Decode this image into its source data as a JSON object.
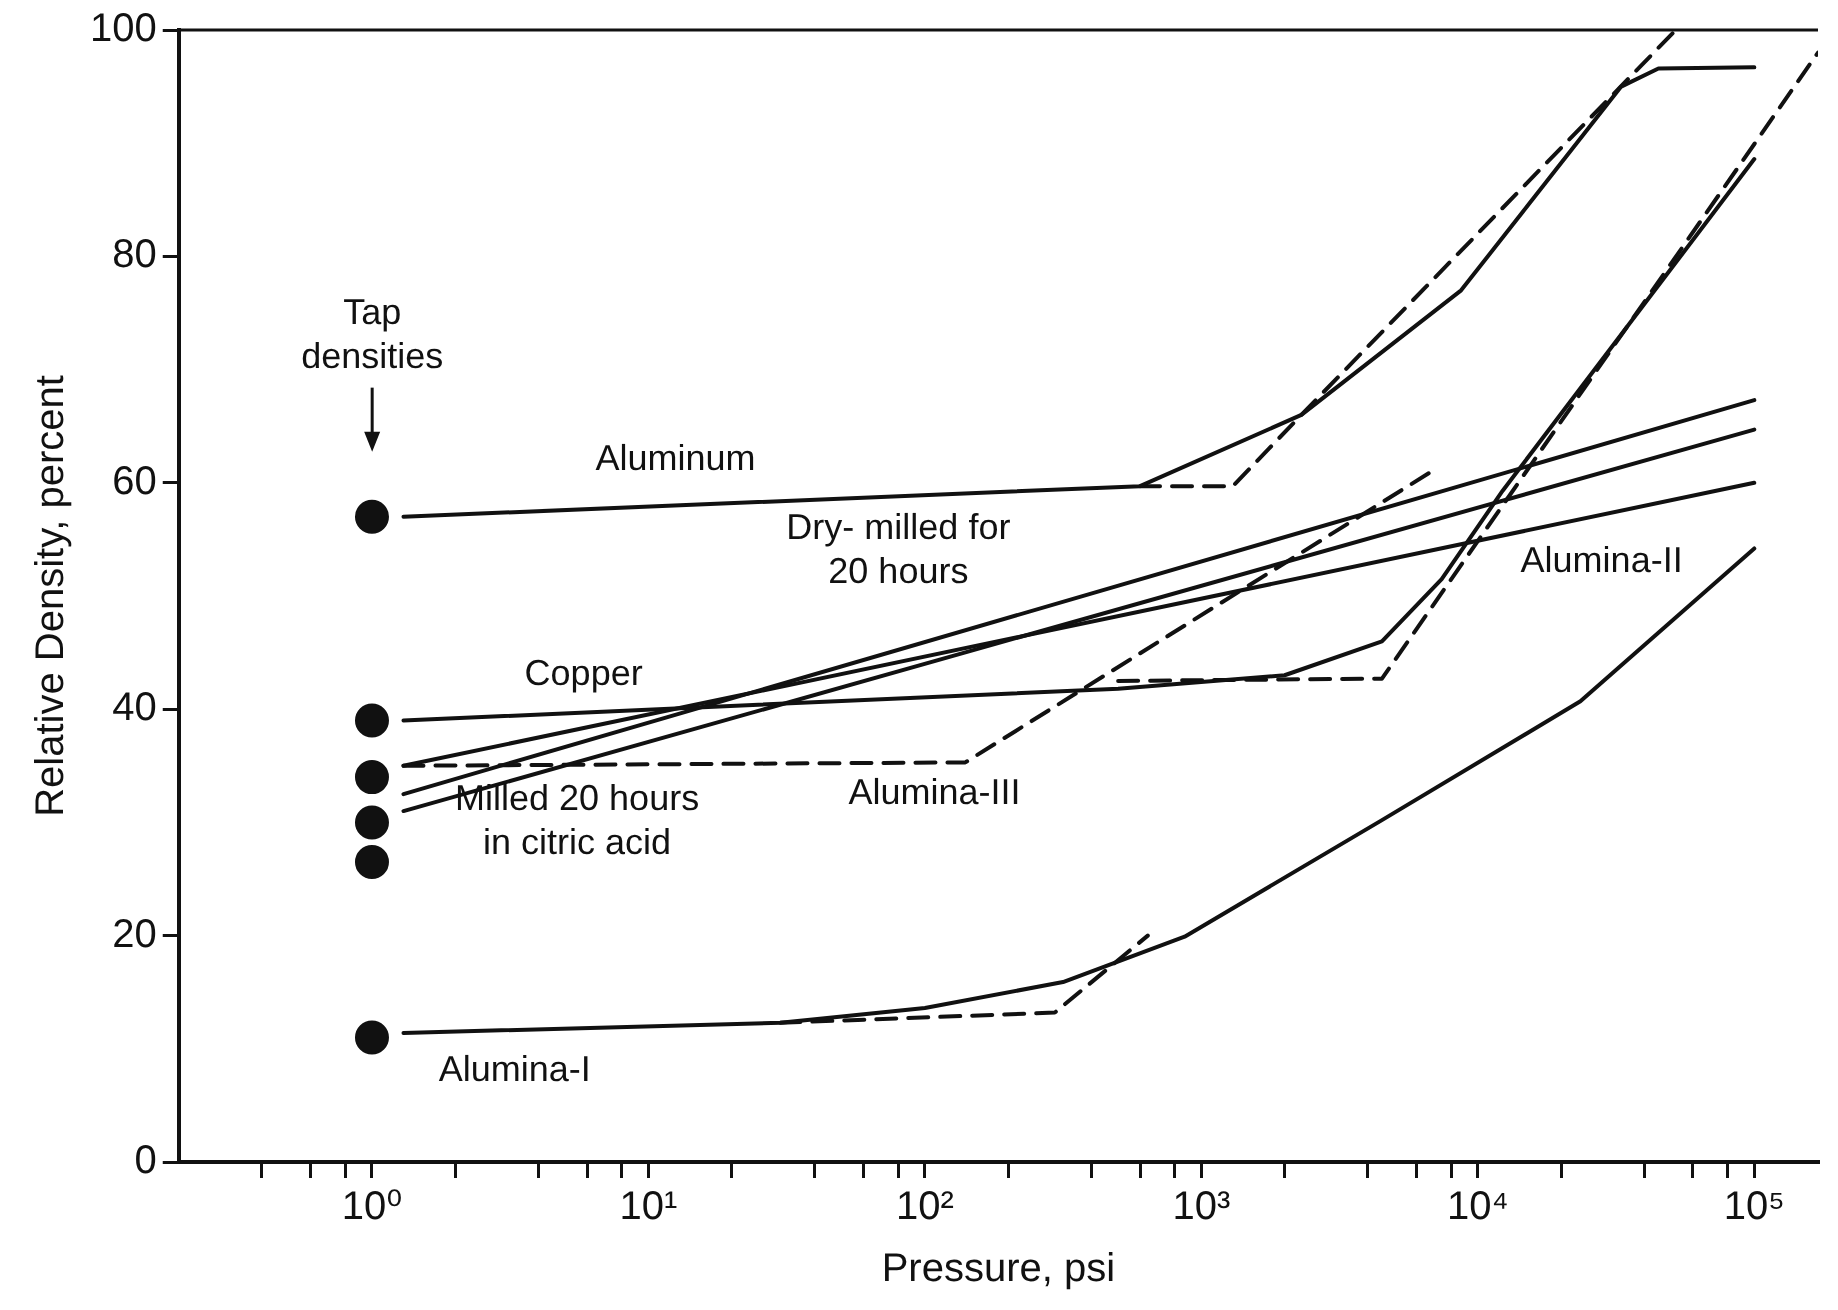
{
  "chart_data": {
    "type": "line",
    "xlabel": "Pressure, psi",
    "ylabel": "Relative Density, percent",
    "log": "x",
    "xlim": [
      0.2,
      170000
    ],
    "ylim": [
      0,
      100
    ],
    "xticks": [
      {
        "value": 0.4,
        "label": null
      },
      {
        "value": 0.6,
        "label": null
      },
      {
        "value": 0.8,
        "label": null
      },
      {
        "value": 1,
        "label": "10⁰"
      },
      {
        "value": 2,
        "label": null
      },
      {
        "value": 4,
        "label": null
      },
      {
        "value": 6,
        "label": null
      },
      {
        "value": 8,
        "label": null
      },
      {
        "value": 10,
        "label": "10¹"
      },
      {
        "value": 20,
        "label": null
      },
      {
        "value": 40,
        "label": null
      },
      {
        "value": 60,
        "label": null
      },
      {
        "value": 80,
        "label": null
      },
      {
        "value": 100,
        "label": "10²"
      },
      {
        "value": 200,
        "label": null
      },
      {
        "value": 400,
        "label": null
      },
      {
        "value": 600,
        "label": null
      },
      {
        "value": 800,
        "label": null
      },
      {
        "value": 1000,
        "label": "10³"
      },
      {
        "value": 2000,
        "label": null
      },
      {
        "value": 4000,
        "label": null
      },
      {
        "value": 6000,
        "label": null
      },
      {
        "value": 8000,
        "label": null
      },
      {
        "value": 10000,
        "label": "10⁴"
      },
      {
        "value": 20000,
        "label": null
      },
      {
        "value": 40000,
        "label": null
      },
      {
        "value": 60000,
        "label": null
      },
      {
        "value": 80000,
        "label": null
      },
      {
        "value": 100000,
        "label": "10⁵"
      }
    ],
    "yticks": [
      0,
      20,
      40,
      60,
      80,
      100
    ],
    "series": [
      {
        "type": "scatter",
        "marker": "circle",
        "color": "#111111",
        "x": [
          1,
          1,
          1,
          1,
          1,
          1
        ],
        "values": [
          57,
          39,
          34,
          30,
          26.5,
          11
        ]
      },
      {
        "marker": "none",
        "line_style": "solid",
        "color": "#111111",
        "x": [
          1.3,
          600,
          2300,
          8700,
          33000,
          45000,
          100000
        ],
        "values": [
          57,
          59.7,
          66,
          77,
          95,
          96.6,
          96.7
        ]
      },
      {
        "type": "line",
        "marker": "none",
        "line_style": "dashed",
        "color": "#111111",
        "x": [
          600,
          1300,
          2300,
          52000
        ],
        "values": [
          59.7,
          59.7,
          66,
          100
        ]
      },
      {
        "type": "line",
        "marker": "none",
        "line_style": "solid",
        "color": "#111111",
        "x": [
          1.3,
          500,
          2000,
          4500,
          7400,
          12300,
          100000
        ],
        "values": [
          39,
          41.8,
          43,
          46,
          51.5,
          59.3,
          88.6
        ]
      },
      {
        "type": "line",
        "marker": "none",
        "line_style": "dashed",
        "color": "#111111",
        "x": [
          500,
          4500,
          170000
        ],
        "values": [
          42.5,
          42.7,
          98
        ]
      },
      {
        "type": "line",
        "marker": "none",
        "line_style": "solid",
        "color": "#111111",
        "x": [
          1.3,
          100000
        ],
        "values": [
          32.5,
          67.3
        ]
      },
      {
        "type": "line",
        "marker": "none",
        "line_style": "solid",
        "color": "#111111",
        "x": [
          1.3,
          100000
        ],
        "values": [
          31,
          64.7
        ]
      },
      {
        "type": "line",
        "marker": "none",
        "line_style": "solid",
        "color": "#111111",
        "x": [
          1.3,
          100000
        ],
        "values": [
          35,
          60
        ]
      },
      {
        "type": "line",
        "marker": "none",
        "line_style": "dashed",
        "color": "#111111",
        "x": [
          1.3,
          140,
          6800
        ],
        "values": [
          35,
          35.3,
          61
        ]
      },
      {
        "type": "line",
        "marker": "none",
        "line_style": "solid",
        "color": "#111111",
        "x": [
          1.3,
          30,
          100,
          316,
          870,
          4500,
          23500,
          100000
        ],
        "values": [
          11.4,
          12.3,
          13.6,
          15.9,
          19.9,
          30.2,
          40.7,
          54.2
        ]
      },
      {
        "type": "line",
        "marker": "none",
        "line_style": "dashed",
        "color": "#111111",
        "x": [
          30,
          295,
          640
        ],
        "values": [
          12.3,
          13.2,
          20
        ]
      }
    ],
    "annotations": [
      "Tap\ndensities",
      "Aluminum",
      "Copper",
      "Dry- milled for\n20 hours",
      "Alumina-III",
      "Alumina-II",
      "Milled 20 hours\nin citric acid",
      "Alumina-I"
    ]
  }
}
